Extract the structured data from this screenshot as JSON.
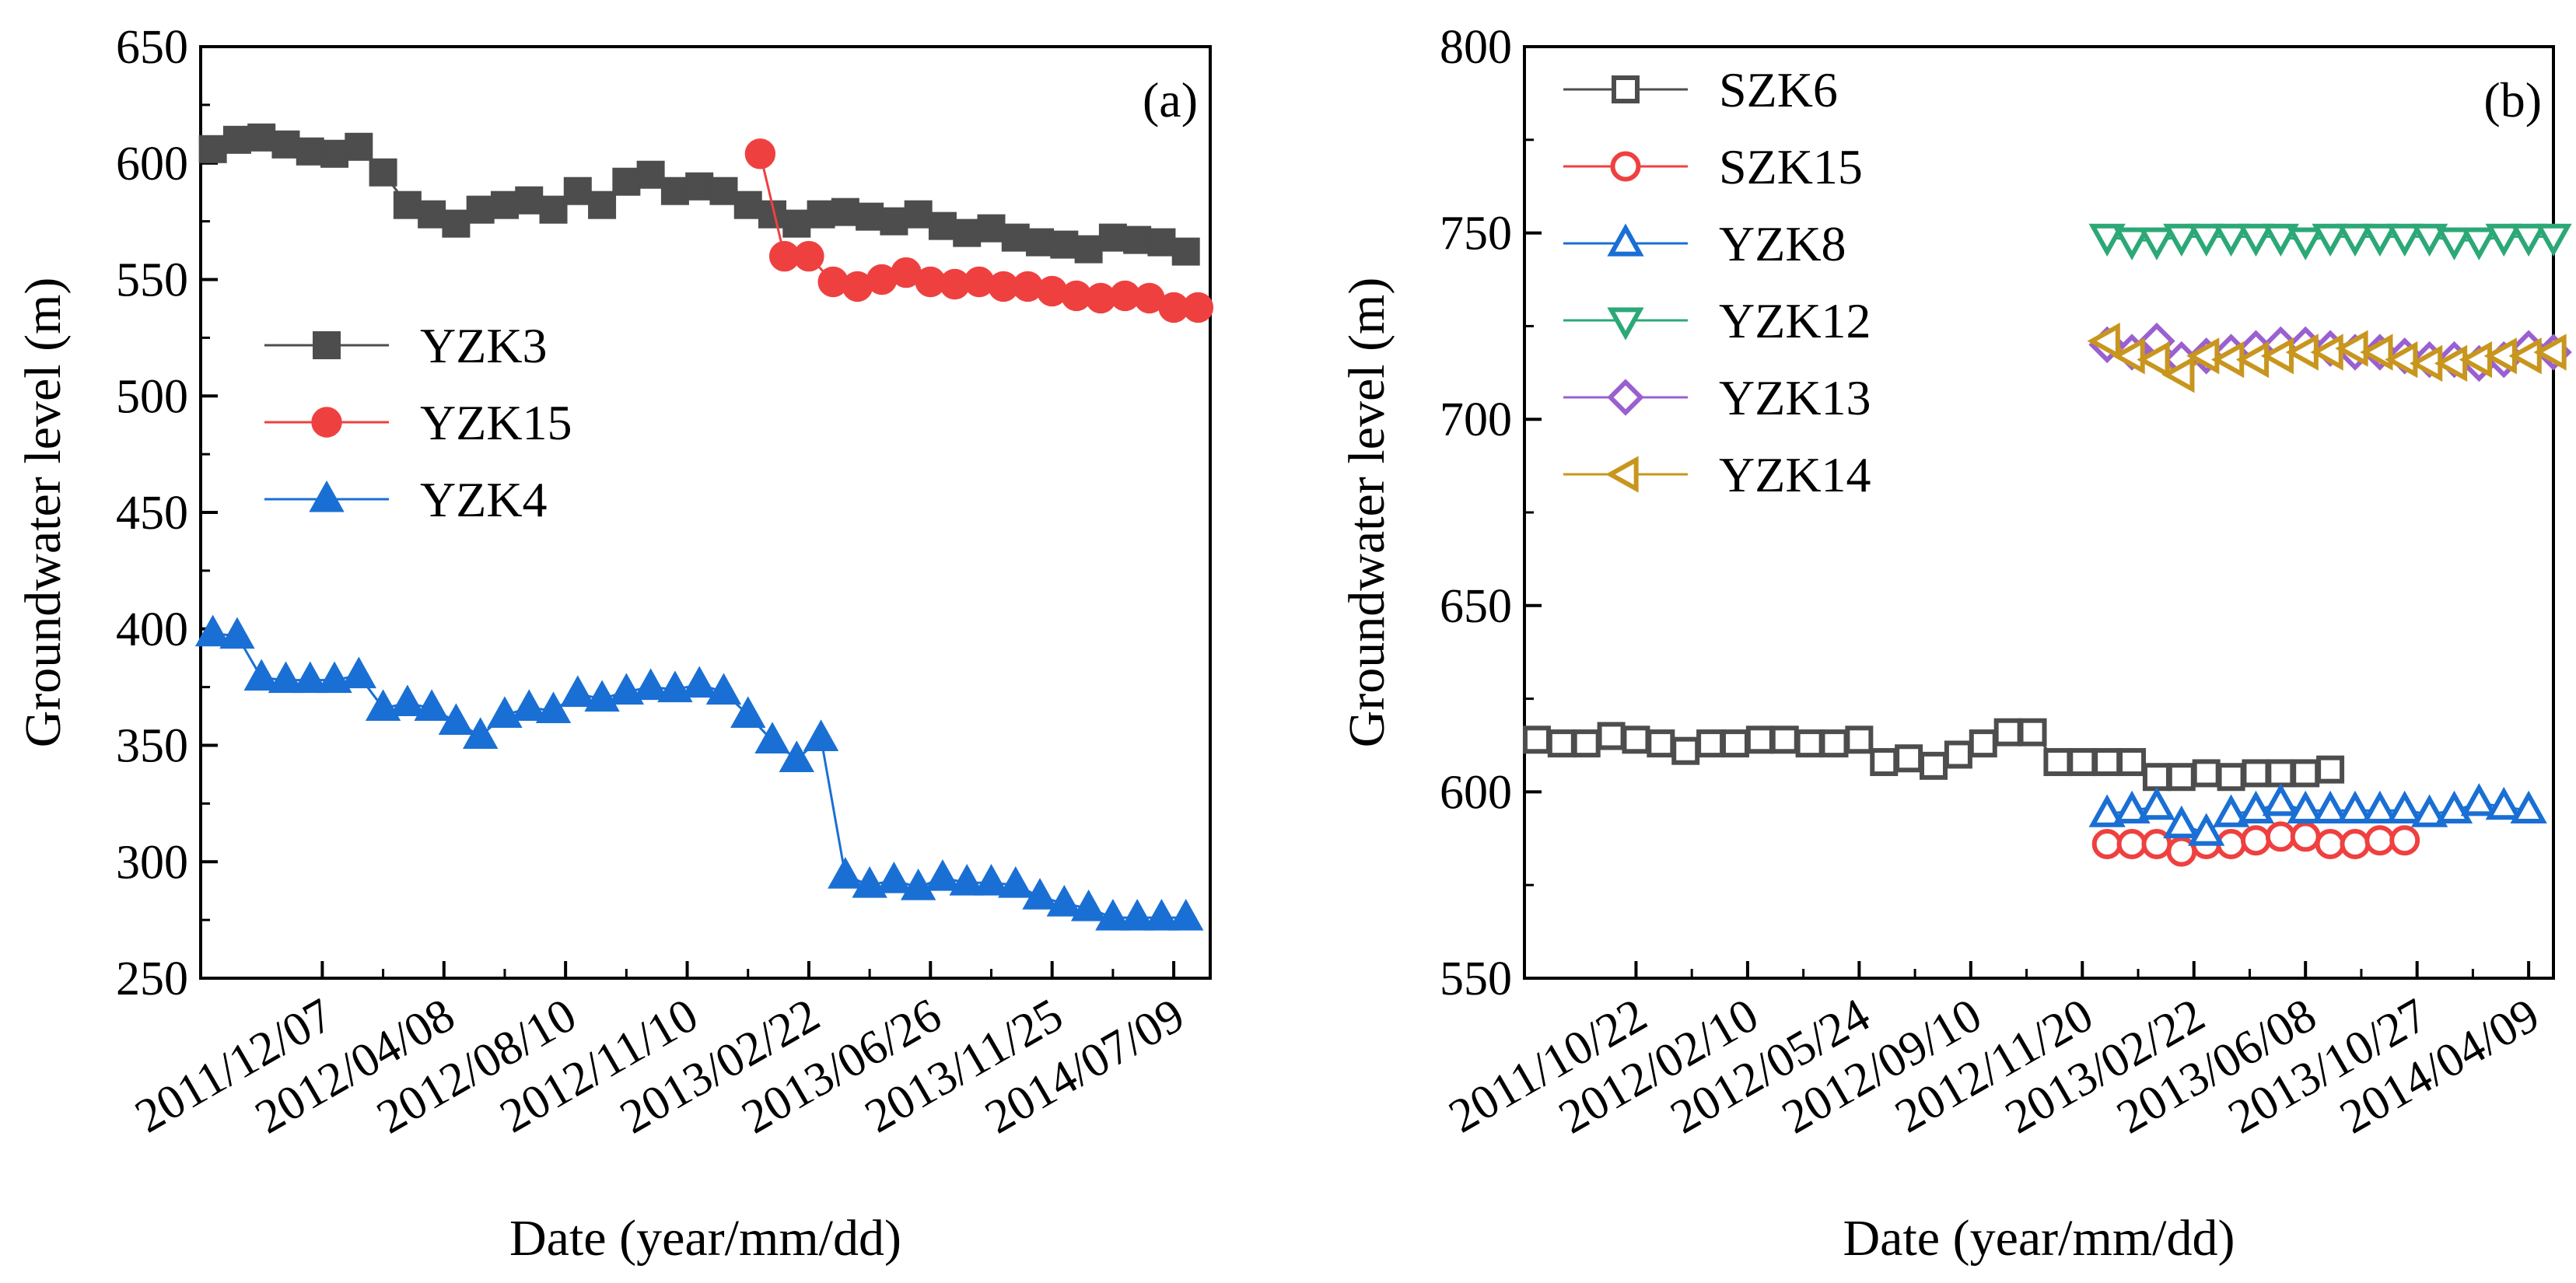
{
  "chart_data": [
    {
      "type": "line",
      "panel_label": "(a)",
      "xlabel": "Date (year/mm/dd)",
      "ylabel": "Groundwater level (m)",
      "ylim": [
        250,
        650
      ],
      "yticks": [
        250,
        300,
        350,
        400,
        450,
        500,
        550,
        600,
        650
      ],
      "xlim": [
        0,
        83
      ],
      "xtick_labels": [
        "2011/12/07",
        "2012/04/08",
        "2012/08/10",
        "2012/11/10",
        "2013/02/22",
        "2013/06/26",
        "2013/11/25",
        "2014/07/09"
      ],
      "xtick_positions": [
        10,
        20,
        30,
        40,
        50,
        60,
        70,
        80
      ],
      "legend_position": "center-left",
      "series": [
        {
          "name": "YZK3",
          "color": "#4d4d4d",
          "marker": "square",
          "filled": true,
          "x": [
            1,
            3,
            5,
            7,
            9,
            11,
            13,
            15,
            17,
            19,
            21,
            23,
            25,
            27,
            29,
            31,
            33,
            35,
            37,
            39,
            41,
            43,
            45,
            47,
            49,
            51,
            53,
            55,
            57,
            59,
            61,
            63,
            65,
            67,
            69,
            71,
            73,
            75,
            77,
            79,
            81
          ],
          "values": [
            606,
            610,
            611,
            608,
            605,
            604,
            607,
            596,
            582,
            578,
            574,
            580,
            582,
            584,
            580,
            588,
            582,
            592,
            595,
            588,
            590,
            588,
            582,
            578,
            574,
            578,
            579,
            577,
            575,
            578,
            573,
            570,
            572,
            568,
            566,
            565,
            563,
            568,
            567,
            566,
            562
          ]
        },
        {
          "name": "YZK15",
          "color": "#ef4040",
          "marker": "circle",
          "filled": true,
          "x": [
            46,
            48,
            50,
            52,
            54,
            56,
            58,
            60,
            62,
            64,
            66,
            68,
            70,
            72,
            74,
            76,
            78,
            80,
            82
          ],
          "values": [
            604,
            560,
            560,
            549,
            547,
            550,
            553,
            549,
            548,
            549,
            547,
            547,
            545,
            543,
            542,
            543,
            542,
            538,
            538
          ]
        },
        {
          "name": "YZK4",
          "color": "#1a6fd4",
          "marker": "triangle-up",
          "filled": true,
          "x": [
            1,
            3,
            5,
            7,
            9,
            11,
            13,
            15,
            17,
            19,
            21,
            23,
            25,
            27,
            29,
            31,
            33,
            35,
            37,
            39,
            41,
            43,
            45,
            47,
            49,
            51,
            53,
            55,
            57,
            59,
            61,
            63,
            65,
            67,
            69,
            71,
            73,
            75,
            77,
            79,
            81
          ],
          "values": [
            398,
            397,
            379,
            378,
            378,
            378,
            380,
            366,
            368,
            366,
            360,
            354,
            363,
            366,
            365,
            372,
            370,
            373,
            375,
            374,
            376,
            373,
            363,
            352,
            344,
            353,
            294,
            290,
            292,
            289,
            293,
            291,
            291,
            290,
            285,
            282,
            280,
            276,
            276,
            276,
            276
          ]
        }
      ]
    },
    {
      "type": "line",
      "panel_label": "(b)",
      "xlabel": "Date (year/mm/dd)",
      "ylabel": "Groundwater level (m)",
      "ylim": [
        550,
        800
      ],
      "yticks": [
        550,
        600,
        650,
        700,
        750,
        800
      ],
      "xlim": [
        0,
        83
      ],
      "xtick_labels": [
        "2011/10/22",
        "2012/02/10",
        "2012/05/24",
        "2012/09/10",
        "2012/11/20",
        "2013/02/22",
        "2013/06/08",
        "2013/10/27",
        "2014/04/09"
      ],
      "xtick_positions": [
        9,
        18,
        27,
        36,
        45,
        54,
        63,
        72,
        81
      ],
      "legend_position": "top-left",
      "series": [
        {
          "name": "SZK6",
          "color": "#4d4d4d",
          "marker": "square",
          "filled": false,
          "x": [
            1,
            3,
            5,
            7,
            9,
            11,
            13,
            15,
            17,
            19,
            21,
            23,
            25,
            27,
            29,
            31,
            33,
            35,
            37,
            39,
            41,
            43,
            45,
            47,
            49,
            51,
            53,
            55,
            57,
            59,
            61,
            63,
            65
          ],
          "values": [
            614,
            613,
            613,
            615,
            614,
            613,
            611,
            613,
            613,
            614,
            614,
            613,
            613,
            614,
            608,
            609,
            607,
            610,
            613,
            616,
            616,
            608,
            608,
            608,
            608,
            604,
            604,
            605,
            604,
            605,
            605,
            605,
            606
          ]
        },
        {
          "name": "SZK15",
          "color": "#ef4040",
          "marker": "circle",
          "filled": false,
          "x": [
            47,
            49,
            51,
            53,
            55,
            57,
            59,
            61,
            63,
            65,
            67,
            69,
            71
          ],
          "values": [
            586,
            586,
            586,
            584,
            586,
            586,
            587,
            588,
            588,
            586,
            586,
            587,
            587
          ]
        },
        {
          "name": "YZK8",
          "color": "#1a6fd4",
          "marker": "triangle-up",
          "filled": false,
          "x": [
            47,
            49,
            51,
            53,
            55,
            57,
            59,
            61,
            63,
            65,
            67,
            69,
            71,
            73,
            75,
            77,
            79,
            81
          ],
          "values": [
            594,
            595,
            596,
            591,
            589,
            594,
            595,
            597,
            595,
            595,
            595,
            595,
            595,
            594,
            595,
            597,
            596,
            595
          ]
        },
        {
          "name": "YZK12",
          "color": "#2ca877",
          "marker": "triangle-down",
          "filled": false,
          "x": [
            47,
            49,
            51,
            53,
            55,
            57,
            59,
            61,
            63,
            65,
            67,
            69,
            71,
            73,
            75,
            77,
            79,
            81,
            83
          ],
          "values": [
            749,
            748,
            748,
            749,
            749,
            749,
            749,
            749,
            748,
            749,
            749,
            749,
            749,
            749,
            748,
            748,
            749,
            749,
            749
          ]
        },
        {
          "name": "YZK13",
          "color": "#9a60d0",
          "marker": "diamond",
          "filled": false,
          "x": [
            47,
            49,
            51,
            53,
            55,
            57,
            59,
            61,
            63,
            65,
            67,
            69,
            71,
            73,
            75,
            77,
            79,
            81,
            83
          ],
          "values": [
            720,
            718,
            721,
            716,
            717,
            718,
            719,
            720,
            720,
            719,
            718,
            718,
            717,
            716,
            716,
            715,
            716,
            719,
            718
          ]
        },
        {
          "name": "YZK14",
          "color": "#c8961e",
          "marker": "triangle-left",
          "filled": false,
          "x": [
            47,
            49,
            51,
            53,
            55,
            57,
            59,
            61,
            63,
            65,
            67,
            69,
            71,
            73,
            75,
            77,
            79,
            81,
            83
          ],
          "values": [
            721,
            717,
            716,
            712,
            717,
            716,
            716,
            717,
            718,
            718,
            719,
            718,
            716,
            715,
            715,
            716,
            717,
            717,
            718
          ]
        }
      ]
    }
  ]
}
